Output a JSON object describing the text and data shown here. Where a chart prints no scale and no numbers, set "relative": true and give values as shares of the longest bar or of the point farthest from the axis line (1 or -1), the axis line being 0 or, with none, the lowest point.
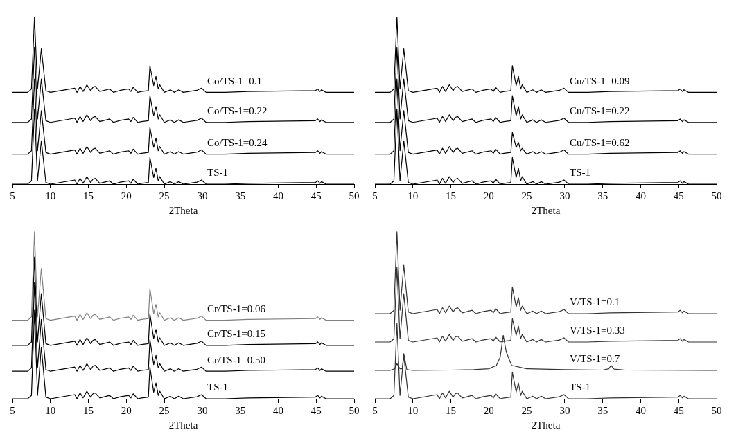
{
  "chart_data": [
    {
      "type": "line",
      "xlabel": "2Theta",
      "relative": true,
      "grid": false,
      "legend": false,
      "xlim": [
        5,
        50
      ],
      "xticks": [
        5,
        10,
        15,
        20,
        25,
        30,
        35,
        40,
        45,
        50
      ],
      "x": [
        5,
        7,
        7.5,
        7.9,
        8.3,
        8.8,
        9.4,
        10,
        13.2,
        13.5,
        13.9,
        14.3,
        14.8,
        15.3,
        15.6,
        15.9,
        16.5,
        17.8,
        18.3,
        19.2,
        20.3,
        20.6,
        20.9,
        21.5,
        22,
        22.9,
        23.1,
        23.6,
        23.9,
        24.2,
        24.4,
        25,
        25.8,
        26.3,
        26.9,
        27.5,
        29.3,
        29.9,
        30.5,
        33,
        36,
        44.9,
        45.2,
        45.5,
        45.7,
        46.3,
        50
      ],
      "series": [
        {
          "name": "Co/TS-1=0.1",
          "color": "#000000",
          "values": [
            0.55,
            0.55,
            0.57,
            1,
            0.57,
            0.81,
            0.56,
            0.55,
            0.575,
            0.55,
            0.585,
            0.555,
            0.595,
            0.56,
            0.58,
            0.585,
            0.555,
            0.57,
            0.55,
            0.562,
            0.57,
            0.555,
            0.58,
            0.55,
            0.555,
            0.56,
            0.71,
            0.59,
            0.645,
            0.57,
            0.595,
            0.55,
            0.565,
            0.55,
            0.565,
            0.55,
            0.562,
            0.575,
            0.55,
            0.55,
            0.555,
            0.56,
            0.57,
            0.555,
            0.565,
            0.55,
            0.55
          ]
        },
        {
          "name": "Co/TS-1=0.22",
          "color": "#000000",
          "values": [
            0.37,
            0.37,
            0.39,
            0.82,
            0.39,
            0.63,
            0.38,
            0.37,
            0.395,
            0.37,
            0.405,
            0.375,
            0.415,
            0.38,
            0.4,
            0.405,
            0.375,
            0.39,
            0.37,
            0.382,
            0.39,
            0.375,
            0.4,
            0.37,
            0.375,
            0.38,
            0.53,
            0.41,
            0.465,
            0.39,
            0.415,
            0.37,
            0.385,
            0.37,
            0.385,
            0.37,
            0.382,
            0.395,
            0.37,
            0.37,
            0.375,
            0.38,
            0.39,
            0.375,
            0.385,
            0.37,
            0.37
          ]
        },
        {
          "name": "Co/TS-1=0.24",
          "color": "#000000",
          "values": [
            0.18,
            0.18,
            0.2,
            0.63,
            0.2,
            0.44,
            0.19,
            0.18,
            0.205,
            0.18,
            0.215,
            0.185,
            0.225,
            0.19,
            0.21,
            0.215,
            0.185,
            0.2,
            0.18,
            0.192,
            0.2,
            0.185,
            0.21,
            0.18,
            0.185,
            0.19,
            0.34,
            0.22,
            0.275,
            0.2,
            0.225,
            0.18,
            0.195,
            0.18,
            0.195,
            0.18,
            0.192,
            0.205,
            0.18,
            0.18,
            0.185,
            0.19,
            0.2,
            0.185,
            0.195,
            0.18,
            0.18
          ]
        },
        {
          "name": "TS-1",
          "color": "#000000",
          "values": [
            0,
            0,
            0.02,
            0.45,
            0.02,
            0.26,
            0.01,
            0,
            0.025,
            0,
            0.035,
            0.005,
            0.045,
            0.01,
            0.03,
            0.035,
            0.005,
            0.02,
            0,
            0.012,
            0.02,
            0.005,
            0.03,
            0,
            0.005,
            0.01,
            0.16,
            0.04,
            0.095,
            0.02,
            0.045,
            0,
            0.015,
            0,
            0.015,
            0,
            0.012,
            0.025,
            0,
            0,
            0.005,
            0.01,
            0.02,
            0.005,
            0.015,
            0,
            0
          ]
        }
      ]
    },
    {
      "type": "line",
      "xlabel": "2Theta",
      "relative": true,
      "grid": false,
      "legend": false,
      "xlim": [
        5,
        50
      ],
      "xticks": [
        5,
        10,
        15,
        20,
        25,
        30,
        35,
        40,
        45,
        50
      ],
      "x": [
        5,
        7,
        7.5,
        7.9,
        8.3,
        8.8,
        9.4,
        10,
        13.2,
        13.5,
        13.9,
        14.3,
        14.8,
        15.3,
        15.6,
        15.9,
        16.5,
        17.8,
        18.3,
        19.2,
        20.3,
        20.6,
        20.9,
        21.5,
        22,
        22.9,
        23.1,
        23.6,
        23.9,
        24.2,
        24.4,
        25,
        25.8,
        26.3,
        26.9,
        27.5,
        29.3,
        29.9,
        30.5,
        33,
        36,
        44.9,
        45.2,
        45.5,
        45.7,
        46.3,
        50
      ],
      "series": [
        {
          "name": "Cu/TS-1=0.09",
          "color": "#000000",
          "values": [
            0.55,
            0.55,
            0.57,
            1,
            0.57,
            0.81,
            0.56,
            0.55,
            0.575,
            0.55,
            0.585,
            0.555,
            0.595,
            0.56,
            0.58,
            0.585,
            0.555,
            0.57,
            0.55,
            0.562,
            0.57,
            0.555,
            0.58,
            0.55,
            0.555,
            0.56,
            0.71,
            0.59,
            0.645,
            0.57,
            0.595,
            0.55,
            0.565,
            0.55,
            0.565,
            0.55,
            0.562,
            0.575,
            0.55,
            0.55,
            0.555,
            0.56,
            0.57,
            0.555,
            0.565,
            0.55,
            0.55
          ]
        },
        {
          "name": "Cu/TS-1=0.22",
          "color": "#000000",
          "values": [
            0.37,
            0.37,
            0.39,
            0.82,
            0.39,
            0.63,
            0.38,
            0.37,
            0.395,
            0.37,
            0.405,
            0.375,
            0.415,
            0.38,
            0.4,
            0.405,
            0.375,
            0.39,
            0.37,
            0.382,
            0.39,
            0.375,
            0.4,
            0.37,
            0.375,
            0.38,
            0.53,
            0.41,
            0.465,
            0.39,
            0.415,
            0.37,
            0.385,
            0.37,
            0.385,
            0.37,
            0.382,
            0.395,
            0.37,
            0.37,
            0.375,
            0.38,
            0.39,
            0.375,
            0.385,
            0.37,
            0.37
          ]
        },
        {
          "name": "Cu/TS-1=0.62",
          "color": "#000000",
          "values": [
            0.18,
            0.18,
            0.2,
            0.63,
            0.2,
            0.44,
            0.19,
            0.18,
            0.205,
            0.18,
            0.215,
            0.185,
            0.225,
            0.19,
            0.21,
            0.215,
            0.185,
            0.2,
            0.18,
            0.192,
            0.2,
            0.185,
            0.21,
            0.18,
            0.185,
            0.19,
            0.31,
            0.22,
            0.25,
            0.2,
            0.215,
            0.18,
            0.195,
            0.18,
            0.195,
            0.18,
            0.192,
            0.205,
            0.18,
            0.18,
            0.185,
            0.19,
            0.2,
            0.185,
            0.195,
            0.18,
            0.18
          ]
        },
        {
          "name": "TS-1",
          "color": "#000000",
          "values": [
            0,
            0,
            0.02,
            0.45,
            0.02,
            0.26,
            0.01,
            0,
            0.025,
            0,
            0.035,
            0.005,
            0.045,
            0.01,
            0.03,
            0.035,
            0.005,
            0.02,
            0,
            0.012,
            0.02,
            0.005,
            0.03,
            0,
            0.005,
            0.01,
            0.16,
            0.04,
            0.095,
            0.02,
            0.045,
            0,
            0.015,
            0,
            0.015,
            0,
            0.012,
            0.025,
            0,
            0,
            0.005,
            0.01,
            0.02,
            0.005,
            0.015,
            0,
            0
          ]
        }
      ]
    },
    {
      "type": "line",
      "xlabel": "2Theta",
      "relative": true,
      "grid": false,
      "legend": false,
      "xlim": [
        5,
        50
      ],
      "xticks": [
        5,
        10,
        15,
        20,
        25,
        30,
        35,
        40,
        45,
        50
      ],
      "x": [
        5,
        7,
        7.5,
        7.9,
        8.3,
        8.8,
        9.4,
        10,
        13.2,
        13.5,
        13.9,
        14.3,
        14.8,
        15.3,
        15.6,
        15.9,
        16.5,
        17.8,
        18.3,
        19.2,
        20.3,
        20.6,
        20.9,
        21.5,
        22,
        22.9,
        23.1,
        23.6,
        23.9,
        24.2,
        24.4,
        25,
        25.8,
        26.3,
        26.9,
        27.5,
        29.3,
        29.9,
        30.5,
        33,
        36,
        44.9,
        45.2,
        45.5,
        45.7,
        46.3,
        50
      ],
      "series": [
        {
          "name": "Cr/TS-1=0.06",
          "color": "#808080",
          "values": [
            0.47,
            0.47,
            0.49,
            1,
            0.49,
            0.78,
            0.48,
            0.47,
            0.495,
            0.47,
            0.505,
            0.475,
            0.515,
            0.48,
            0.5,
            0.505,
            0.475,
            0.49,
            0.47,
            0.482,
            0.49,
            0.475,
            0.5,
            0.47,
            0.475,
            0.48,
            0.66,
            0.51,
            0.565,
            0.49,
            0.515,
            0.47,
            0.485,
            0.47,
            0.485,
            0.47,
            0.482,
            0.495,
            0.47,
            0.47,
            0.475,
            0.48,
            0.49,
            0.475,
            0.485,
            0.47,
            0.47
          ]
        },
        {
          "name": "Cr/TS-1=0.15",
          "color": "#000000",
          "values": [
            0.32,
            0.32,
            0.34,
            0.85,
            0.34,
            0.63,
            0.33,
            0.32,
            0.345,
            0.32,
            0.355,
            0.325,
            0.365,
            0.33,
            0.35,
            0.355,
            0.325,
            0.34,
            0.32,
            0.332,
            0.34,
            0.325,
            0.35,
            0.32,
            0.325,
            0.33,
            0.51,
            0.36,
            0.415,
            0.34,
            0.365,
            0.32,
            0.335,
            0.32,
            0.335,
            0.32,
            0.332,
            0.345,
            0.32,
            0.32,
            0.325,
            0.33,
            0.34,
            0.325,
            0.335,
            0.32,
            0.32
          ]
        },
        {
          "name": "Cr/TS-1=0.50",
          "color": "#000000",
          "values": [
            0.165,
            0.165,
            0.185,
            0.695,
            0.185,
            0.475,
            0.175,
            0.165,
            0.19,
            0.165,
            0.2,
            0.17,
            0.21,
            0.175,
            0.195,
            0.2,
            0.17,
            0.185,
            0.165,
            0.177,
            0.185,
            0.17,
            0.195,
            0.165,
            0.17,
            0.175,
            0.355,
            0.205,
            0.26,
            0.185,
            0.21,
            0.165,
            0.18,
            0.165,
            0.18,
            0.165,
            0.177,
            0.19,
            0.165,
            0.165,
            0.17,
            0.175,
            0.185,
            0.17,
            0.18,
            0.165,
            0.165
          ]
        },
        {
          "name": "TS-1",
          "color": "#000000",
          "values": [
            0,
            0,
            0.02,
            0.53,
            0.02,
            0.31,
            0.01,
            0,
            0.025,
            0,
            0.035,
            0.005,
            0.045,
            0.01,
            0.03,
            0.035,
            0.005,
            0.02,
            0,
            0.012,
            0.02,
            0.005,
            0.03,
            0,
            0.005,
            0.01,
            0.19,
            0.04,
            0.095,
            0.02,
            0.045,
            0,
            0.015,
            0,
            0.015,
            0,
            0.012,
            0.025,
            0,
            0,
            0.005,
            0.01,
            0.02,
            0.005,
            0.015,
            0,
            0
          ]
        }
      ]
    },
    {
      "type": "line",
      "xlabel": "2Theta",
      "relative": true,
      "grid": false,
      "legend": false,
      "xlim": [
        5,
        50
      ],
      "xticks": [
        5,
        10,
        15,
        20,
        25,
        30,
        35,
        40,
        45,
        50
      ],
      "x": [
        5,
        7,
        7.5,
        7.9,
        8.3,
        8.8,
        9.4,
        10,
        13.2,
        13.5,
        13.9,
        14.3,
        14.8,
        15.3,
        15.6,
        15.9,
        16.5,
        17.8,
        18.3,
        19.2,
        20.3,
        20.6,
        20.9,
        21.5,
        22,
        22.9,
        23.1,
        23.6,
        23.9,
        24.2,
        24.4,
        25,
        25.8,
        26.3,
        26.9,
        27.5,
        29.3,
        29.9,
        30.5,
        33,
        36,
        44.9,
        45.2,
        45.5,
        45.7,
        46.3,
        50
      ],
      "series": [
        {
          "name": "V/TS-1=0.1",
          "color": "#333333",
          "values": [
            0.51,
            0.51,
            0.53,
            1,
            0.53,
            0.8,
            0.52,
            0.51,
            0.535,
            0.51,
            0.545,
            0.515,
            0.555,
            0.52,
            0.54,
            0.545,
            0.515,
            0.53,
            0.51,
            0.522,
            0.53,
            0.515,
            0.54,
            0.51,
            0.515,
            0.52,
            0.67,
            0.55,
            0.605,
            0.53,
            0.555,
            0.51,
            0.525,
            0.51,
            0.525,
            0.51,
            0.522,
            0.535,
            0.51,
            0.51,
            0.515,
            0.52,
            0.53,
            0.515,
            0.525,
            0.51,
            0.51
          ]
        },
        {
          "name": "V/TS-1=0.33",
          "color": "#333333",
          "values": [
            0.34,
            0.34,
            0.36,
            0.79,
            0.36,
            0.63,
            0.35,
            0.34,
            0.365,
            0.34,
            0.375,
            0.345,
            0.385,
            0.35,
            0.37,
            0.375,
            0.345,
            0.36,
            0.34,
            0.352,
            0.36,
            0.345,
            0.37,
            0.34,
            0.345,
            0.35,
            0.48,
            0.38,
            0.435,
            0.36,
            0.385,
            0.34,
            0.355,
            0.34,
            0.355,
            0.34,
            0.352,
            0.365,
            0.34,
            0.34,
            0.345,
            0.35,
            0.36,
            0.345,
            0.355,
            0.34,
            0.34
          ]
        },
        {
          "name": "V/TS-1=0.7",
          "color": "#333333",
          "x": [
            5,
            7,
            7.6,
            7.9,
            8.3,
            8.6,
            8.8,
            9.2,
            10,
            15,
            18,
            20,
            21,
            21.5,
            21.9,
            22.3,
            23,
            25,
            30,
            35,
            35.8,
            36.1,
            36.5,
            38,
            50
          ],
          "values": [
            0.17,
            0.17,
            0.18,
            0.21,
            0.18,
            0.18,
            0.27,
            0.175,
            0.17,
            0.172,
            0.175,
            0.18,
            0.2,
            0.25,
            0.38,
            0.28,
            0.2,
            0.18,
            0.175,
            0.172,
            0.18,
            0.2,
            0.178,
            0.172,
            0.17
          ]
        },
        {
          "name": "TS-1",
          "color": "#333333",
          "values": [
            0,
            0,
            0.02,
            0.45,
            0.02,
            0.26,
            0.01,
            0,
            0.025,
            0,
            0.035,
            0.005,
            0.045,
            0.01,
            0.03,
            0.035,
            0.005,
            0.02,
            0,
            0.012,
            0.02,
            0.005,
            0.03,
            0,
            0.005,
            0.01,
            0.16,
            0.04,
            0.095,
            0.02,
            0.045,
            0,
            0.015,
            0,
            0.015,
            0,
            0.012,
            0.025,
            0,
            0,
            0.005,
            0.01,
            0.02,
            0.005,
            0.015,
            0,
            0
          ]
        }
      ]
    }
  ]
}
